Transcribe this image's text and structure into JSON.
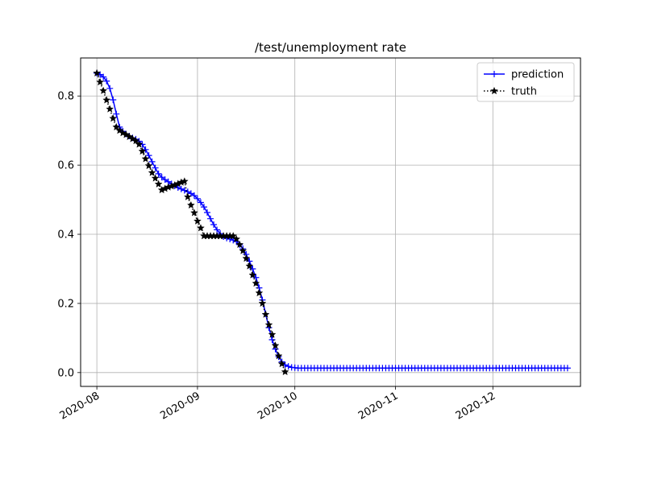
{
  "chart_data": {
    "type": "line",
    "title": "/test/unemployment rate",
    "xlabel": "",
    "ylabel": "",
    "x_type": "date",
    "xlim": [
      "2020-07-27",
      "2020-12-28"
    ],
    "ylim": [
      -0.04,
      0.91
    ],
    "x_ticks": [
      "2020-08-01",
      "2020-09-01",
      "2020-10-01",
      "2020-11-01",
      "2020-12-01"
    ],
    "x_tick_labels": [
      "2020-08",
      "2020-09",
      "2020-10",
      "2020-11",
      "2020-12"
    ],
    "y_ticks": [
      0.0,
      0.2,
      0.4,
      0.6,
      0.8
    ],
    "y_tick_labels": [
      "0.0",
      "0.2",
      "0.4",
      "0.6",
      "0.8"
    ],
    "grid": true,
    "legend": "top-right",
    "series": [
      {
        "name": "prediction",
        "color": "#0000ff",
        "marker": "+",
        "linestyle": "solid",
        "x": [
          "2020-08-01",
          "2020-08-02",
          "2020-08-03",
          "2020-08-04",
          "2020-08-05",
          "2020-08-06",
          "2020-08-07",
          "2020-08-08",
          "2020-08-09",
          "2020-08-10",
          "2020-08-11",
          "2020-08-12",
          "2020-08-13",
          "2020-08-14",
          "2020-08-15",
          "2020-08-16",
          "2020-08-17",
          "2020-08-18",
          "2020-08-19",
          "2020-08-20",
          "2020-08-21",
          "2020-08-22",
          "2020-08-23",
          "2020-08-24",
          "2020-08-25",
          "2020-08-26",
          "2020-08-27",
          "2020-08-28",
          "2020-08-29",
          "2020-08-30",
          "2020-08-31",
          "2020-09-01",
          "2020-09-02",
          "2020-09-03",
          "2020-09-04",
          "2020-09-05",
          "2020-09-06",
          "2020-09-07",
          "2020-09-08",
          "2020-09-09",
          "2020-09-10",
          "2020-09-11",
          "2020-09-12",
          "2020-09-13",
          "2020-09-14",
          "2020-09-15",
          "2020-09-16",
          "2020-09-17",
          "2020-09-18",
          "2020-09-19",
          "2020-09-20",
          "2020-09-21",
          "2020-09-22",
          "2020-09-23",
          "2020-09-24",
          "2020-09-25",
          "2020-09-26",
          "2020-09-27",
          "2020-09-28",
          "2020-09-29",
          "2020-09-30",
          "2020-10-01",
          "2020-10-02",
          "2020-10-03",
          "2020-10-04",
          "2020-10-05",
          "2020-10-06",
          "2020-10-07",
          "2020-10-08",
          "2020-10-09",
          "2020-10-10",
          "2020-10-11",
          "2020-10-12",
          "2020-10-13",
          "2020-10-14",
          "2020-10-15",
          "2020-10-16",
          "2020-10-17",
          "2020-10-18",
          "2020-10-19",
          "2020-10-20",
          "2020-10-21",
          "2020-10-22",
          "2020-10-23",
          "2020-10-24",
          "2020-10-25",
          "2020-10-26",
          "2020-10-27",
          "2020-10-28",
          "2020-10-29",
          "2020-10-30",
          "2020-10-31",
          "2020-11-01",
          "2020-11-02",
          "2020-11-03",
          "2020-11-04",
          "2020-11-05",
          "2020-11-06",
          "2020-11-07",
          "2020-11-08",
          "2020-11-09",
          "2020-11-10",
          "2020-11-11",
          "2020-11-12",
          "2020-11-13",
          "2020-11-14",
          "2020-11-15",
          "2020-11-16",
          "2020-11-17",
          "2020-11-18",
          "2020-11-19",
          "2020-11-20",
          "2020-11-21",
          "2020-11-22",
          "2020-11-23",
          "2020-11-24",
          "2020-11-25",
          "2020-11-26",
          "2020-11-27",
          "2020-11-28",
          "2020-11-29",
          "2020-11-30",
          "2020-12-01",
          "2020-12-02",
          "2020-12-03",
          "2020-12-04",
          "2020-12-05",
          "2020-12-06",
          "2020-12-07",
          "2020-12-08",
          "2020-12-09",
          "2020-12-10",
          "2020-12-11",
          "2020-12-12",
          "2020-12-13",
          "2020-12-14",
          "2020-12-15",
          "2020-12-16",
          "2020-12-17",
          "2020-12-18",
          "2020-12-19",
          "2020-12-20",
          "2020-12-21",
          "2020-12-22",
          "2020-12-23",
          "2020-12-24"
        ],
        "y": [
          0.866,
          0.862,
          0.855,
          0.843,
          0.822,
          0.789,
          0.748,
          0.71,
          0.698,
          0.69,
          0.684,
          0.679,
          0.675,
          0.669,
          0.66,
          0.645,
          0.628,
          0.61,
          0.592,
          0.575,
          0.565,
          0.558,
          0.552,
          0.546,
          0.54,
          0.535,
          0.531,
          0.527,
          0.523,
          0.518,
          0.512,
          0.503,
          0.492,
          0.479,
          0.463,
          0.445,
          0.428,
          0.413,
          0.402,
          0.393,
          0.389,
          0.386,
          0.383,
          0.379,
          0.37,
          0.358,
          0.342,
          0.322,
          0.3,
          0.275,
          0.245,
          0.21,
          0.17,
          0.13,
          0.095,
          0.068,
          0.046,
          0.031,
          0.022,
          0.018,
          0.015,
          0.014,
          0.013,
          0.013,
          0.013,
          0.013,
          0.013,
          0.013,
          0.013,
          0.013,
          0.013,
          0.013,
          0.013,
          0.013,
          0.013,
          0.013,
          0.013,
          0.013,
          0.013,
          0.013,
          0.013,
          0.013,
          0.013,
          0.013,
          0.013,
          0.013,
          0.013,
          0.013,
          0.013,
          0.013,
          0.013,
          0.013,
          0.013,
          0.013,
          0.013,
          0.013,
          0.013,
          0.013,
          0.013,
          0.013,
          0.013,
          0.013,
          0.013,
          0.013,
          0.013,
          0.013,
          0.013,
          0.013,
          0.013,
          0.013,
          0.013,
          0.013,
          0.013,
          0.013,
          0.013,
          0.013,
          0.013,
          0.013,
          0.013,
          0.013,
          0.013,
          0.013,
          0.013,
          0.013,
          0.013,
          0.013,
          0.013,
          0.013,
          0.013,
          0.013,
          0.013,
          0.013,
          0.013,
          0.013,
          0.013,
          0.013,
          0.013,
          0.013,
          0.013,
          0.013,
          0.013,
          0.013,
          0.013,
          0.013,
          0.013,
          0.013
        ]
      },
      {
        "name": "truth",
        "color": "#000000",
        "marker": "*",
        "linestyle": "dotted",
        "x": [
          "2020-08-01",
          "2020-08-02",
          "2020-08-03",
          "2020-08-04",
          "2020-08-05",
          "2020-08-06",
          "2020-08-07",
          "2020-08-08",
          "2020-08-09",
          "2020-08-10",
          "2020-08-11",
          "2020-08-12",
          "2020-08-13",
          "2020-08-14",
          "2020-08-15",
          "2020-08-16",
          "2020-08-17",
          "2020-08-18",
          "2020-08-19",
          "2020-08-20",
          "2020-08-21",
          "2020-08-22",
          "2020-08-23",
          "2020-08-24",
          "2020-08-25",
          "2020-08-26",
          "2020-08-27",
          "2020-08-28",
          "2020-08-29",
          "2020-08-30",
          "2020-08-31",
          "2020-09-01",
          "2020-09-02",
          "2020-09-03",
          "2020-09-04",
          "2020-09-05",
          "2020-09-06",
          "2020-09-07",
          "2020-09-08",
          "2020-09-09",
          "2020-09-10",
          "2020-09-11",
          "2020-09-12",
          "2020-09-13",
          "2020-09-14",
          "2020-09-15",
          "2020-09-16",
          "2020-09-17",
          "2020-09-18",
          "2020-09-19",
          "2020-09-20",
          "2020-09-21",
          "2020-09-22",
          "2020-09-23",
          "2020-09-24",
          "2020-09-25",
          "2020-09-26",
          "2020-09-27",
          "2020-09-28"
        ],
        "y": [
          0.866,
          0.84,
          0.815,
          0.788,
          0.762,
          0.735,
          0.71,
          0.7,
          0.693,
          0.688,
          0.682,
          0.676,
          0.67,
          0.66,
          0.64,
          0.618,
          0.598,
          0.578,
          0.562,
          0.545,
          0.528,
          0.532,
          0.536,
          0.539,
          0.542,
          0.546,
          0.55,
          0.553,
          0.508,
          0.484,
          0.462,
          0.438,
          0.418,
          0.395,
          0.395,
          0.395,
          0.395,
          0.395,
          0.395,
          0.395,
          0.395,
          0.395,
          0.395,
          0.386,
          0.37,
          0.352,
          0.33,
          0.308,
          0.282,
          0.258,
          0.23,
          0.2,
          0.168,
          0.138,
          0.11,
          0.078,
          0.048,
          0.025,
          0.002
        ]
      }
    ]
  }
}
